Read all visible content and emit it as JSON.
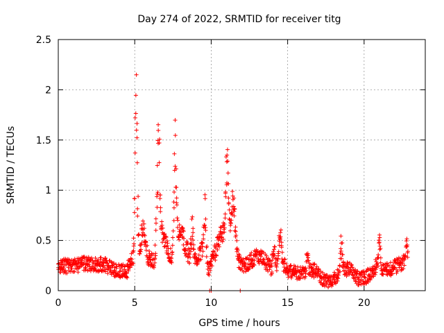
{
  "chart_data": {
    "type": "scatter",
    "title": "Day 274 of 2022, SRMTID for receiver titg",
    "xlabel": "GPS time / hours",
    "ylabel": "SRMTID / TECUs",
    "xlim": [
      0,
      24
    ],
    "ylim": [
      0,
      2.5
    ],
    "xticks": [
      0,
      5,
      10,
      15,
      20
    ],
    "yticks": [
      0,
      0.5,
      1,
      1.5,
      2,
      2.5
    ],
    "xtick_labels": [
      "0",
      "5",
      "10",
      "15",
      "20"
    ],
    "ytick_labels": [
      "0",
      "0.5",
      "1",
      "1.5",
      "2",
      "2.5"
    ],
    "grid": true,
    "marker": "+",
    "series_color": "#ff0000",
    "sample_step_hours": 0.05,
    "baseline": [
      [
        0.0,
        0.24
      ],
      [
        1.0,
        0.25
      ],
      [
        2.0,
        0.27
      ],
      [
        3.0,
        0.26
      ],
      [
        3.5,
        0.22
      ],
      [
        4.0,
        0.19
      ],
      [
        4.5,
        0.2
      ],
      [
        4.8,
        0.3
      ],
      [
        5.2,
        0.35
      ],
      [
        5.5,
        0.45
      ],
      [
        6.0,
        0.3
      ],
      [
        6.3,
        0.28
      ],
      [
        6.8,
        0.55
      ],
      [
        7.2,
        0.4
      ],
      [
        7.5,
        0.3
      ],
      [
        7.9,
        0.5
      ],
      [
        8.3,
        0.45
      ],
      [
        8.7,
        0.28
      ],
      [
        9.0,
        0.3
      ],
      [
        9.5,
        0.45
      ],
      [
        9.8,
        0.2
      ],
      [
        10.2,
        0.35
      ],
      [
        10.6,
        0.55
      ],
      [
        11.0,
        0.62
      ],
      [
        11.5,
        0.6
      ],
      [
        11.8,
        0.3
      ],
      [
        12.2,
        0.25
      ],
      [
        12.6,
        0.3
      ],
      [
        13.0,
        0.35
      ],
      [
        13.5,
        0.3
      ],
      [
        14.0,
        0.2
      ],
      [
        14.6,
        0.3
      ],
      [
        15.0,
        0.2
      ],
      [
        16.0,
        0.17
      ],
      [
        16.8,
        0.2
      ],
      [
        17.4,
        0.1
      ],
      [
        17.8,
        0.08
      ],
      [
        18.4,
        0.18
      ],
      [
        19.0,
        0.22
      ],
      [
        19.6,
        0.12
      ],
      [
        20.2,
        0.14
      ],
      [
        20.8,
        0.25
      ],
      [
        21.4,
        0.2
      ],
      [
        22.0,
        0.24
      ],
      [
        22.6,
        0.28
      ],
      [
        22.9,
        0.3
      ]
    ],
    "peaks": [
      {
        "x": 5.1,
        "height": 1.85,
        "width": 0.07
      },
      {
        "x": 5.55,
        "height": 0.25,
        "width": 0.1
      },
      {
        "x": 6.55,
        "height": 1.35,
        "width": 0.09
      },
      {
        "x": 7.65,
        "height": 1.35,
        "width": 0.08
      },
      {
        "x": 8.05,
        "height": 0.2,
        "width": 0.1
      },
      {
        "x": 8.75,
        "height": 0.45,
        "width": 0.07
      },
      {
        "x": 9.6,
        "height": 0.55,
        "width": 0.07
      },
      {
        "x": 11.05,
        "height": 0.9,
        "width": 0.08
      },
      {
        "x": 11.45,
        "height": 0.35,
        "width": 0.1
      },
      {
        "x": 14.1,
        "height": 0.25,
        "width": 0.08
      },
      {
        "x": 14.5,
        "height": 0.35,
        "width": 0.08
      },
      {
        "x": 16.3,
        "height": 0.25,
        "width": 0.06
      },
      {
        "x": 18.5,
        "height": 0.3,
        "width": 0.07
      },
      {
        "x": 21.0,
        "height": 0.3,
        "width": 0.06
      },
      {
        "x": 22.8,
        "height": 0.25,
        "width": 0.06
      }
    ],
    "zero_points": [
      9.9,
      10.0,
      11.9
    ]
  }
}
